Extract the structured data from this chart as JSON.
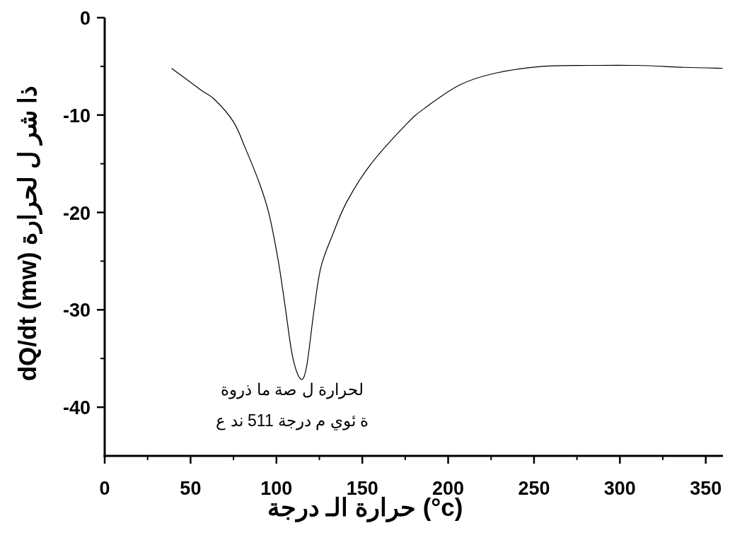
{
  "chart_data": {
    "type": "line",
    "xlabel": "درجة الـ حرارة (°c)",
    "ylabel": "dQ/dt (mw) لحرارة ل شر ذا",
    "xlim": [
      0,
      360
    ],
    "ylim": [
      -45,
      0
    ],
    "xticks": [
      0,
      50,
      100,
      150,
      200,
      250,
      300,
      350
    ],
    "yticks": [
      0,
      -10,
      -20,
      -30,
      -40
    ],
    "grid": false,
    "marker": "none",
    "line_style": "solid",
    "x": [
      39.0,
      55.8,
      64.0,
      75.0,
      81.9,
      90.1,
      95.6,
      101.1,
      105.2,
      109.4,
      114.2,
      117.6,
      121.7,
      125.8,
      132.7,
      141.0,
      154.7,
      175.3,
      186.3,
      206.9,
      227.5,
      255,
      282.5,
      310,
      337.4,
      359.7
    ],
    "series": [
      {
        "color": "#000000",
        "values": [
          -5.2,
          -7.4,
          -8.4,
          -10.7,
          -13.4,
          -17.0,
          -20.1,
          -25.0,
          -29.8,
          -34.8,
          -37.1,
          -35.8,
          -30.3,
          -25.7,
          -22.3,
          -18.9,
          -15.1,
          -11.0,
          -9.3,
          -6.9,
          -5.7,
          -5.0,
          -4.9,
          -4.9,
          -5.1,
          -5.2
        ]
      }
    ],
    "annotations": [
      {
        "text": "ذروة ما صة ل لحرارة",
        "x": 114.2,
        "y": -37.1
      },
      "ع ند 511 درجة م ئوي ة"
    ]
  }
}
